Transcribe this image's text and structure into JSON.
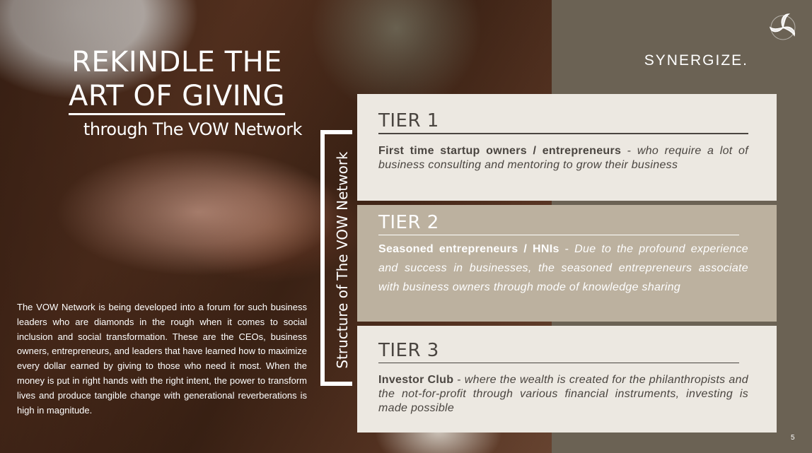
{
  "slide": {
    "headline": {
      "line1": "REKINDLE THE",
      "line2": "ART OF GIVING",
      "line3": "through The VOW Network"
    },
    "description": "The VOW Network is being developed into a forum for such business leaders who are diamonds in the rough when it comes to social inclusion and social transformation. These are the CEOs, business owners, entrepreneurs, and leaders that have learned how to maximize every dollar earned by giving to those who need it most. When the money is put in right hands with the right intent, the power to transform lives and produce tangible change with generational reverberations is high in magnitude.",
    "vertical_title": "Structure of The VOW Network",
    "tagline": "SYNERGIZE.",
    "page_number": "5",
    "logo_icon": "swirl-logo-icon"
  },
  "tiers": [
    {
      "title": "TIER 1",
      "lead": "First time startup owners / entrepreneurs",
      "separator": " - ",
      "detail": "who require a lot of business consulting and mentoring to grow their business"
    },
    {
      "title": "TIER 2",
      "lead": "Seasoned entrepreneurs / HNIs",
      "separator": " - ",
      "detail": "Due to the profound experience and success in businesses, the seasoned entrepreneurs associate with business owners through mode of knowledge sharing"
    },
    {
      "title": "TIER 3",
      "lead": "Investor Club",
      "separator": " - ",
      "detail": "where the wealth is created for the philanthropists and the not-for-profit through various financial instruments, investing is made possible"
    }
  ],
  "colors": {
    "right_panel": "#6b6254",
    "tier_light": "#ece8e1",
    "tier_mid": "#bcb19f",
    "text_dark": "#4a4540"
  }
}
